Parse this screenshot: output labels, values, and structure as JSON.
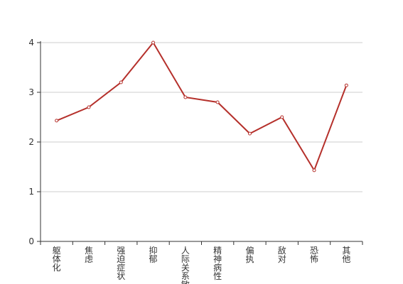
{
  "chart_data": {
    "type": "line",
    "categories": [
      "躯体化",
      "焦虑",
      "强迫症状",
      "抑郁",
      "人际关系敏感",
      "精神病性",
      "偏执",
      "敌对",
      "恐怖",
      "其他"
    ],
    "series": [
      {
        "color": "#b5302b",
        "values": [
          2.43,
          2.7,
          3.2,
          4.0,
          2.9,
          2.8,
          2.17,
          2.5,
          1.43,
          3.14
        ]
      }
    ],
    "ylim": [
      0,
      4
    ],
    "yticks": [
      0,
      1,
      2,
      3,
      4
    ],
    "grid": true
  }
}
